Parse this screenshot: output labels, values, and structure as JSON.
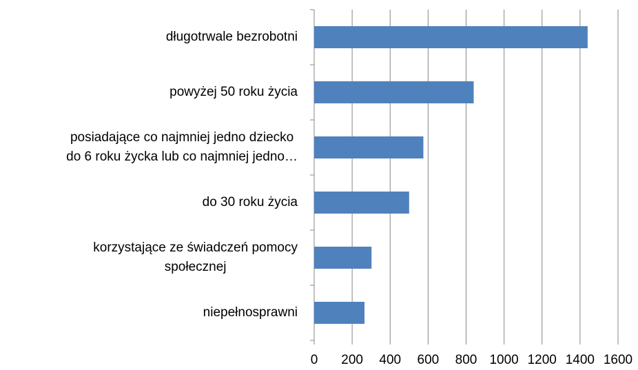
{
  "chart_data": {
    "type": "barh",
    "categories": [
      "długotrwale bezrobotni",
      "powyżej 50 roku życia",
      "posiadające co najmniej jedno dziecko\ndo 6 roku życka lub co najmniej jedno…",
      "do 30 roku życia",
      "korzystające ze świadczeń pomocy\nspołecznej",
      "niepełnosprawni"
    ],
    "values": [
      1440,
      840,
      575,
      500,
      302,
      265
    ],
    "color": "#4f81bd",
    "xlim": [
      0,
      1600
    ],
    "xticks": [
      0,
      200,
      400,
      600,
      800,
      1000,
      1200,
      1400,
      1600
    ],
    "grid": true
  }
}
